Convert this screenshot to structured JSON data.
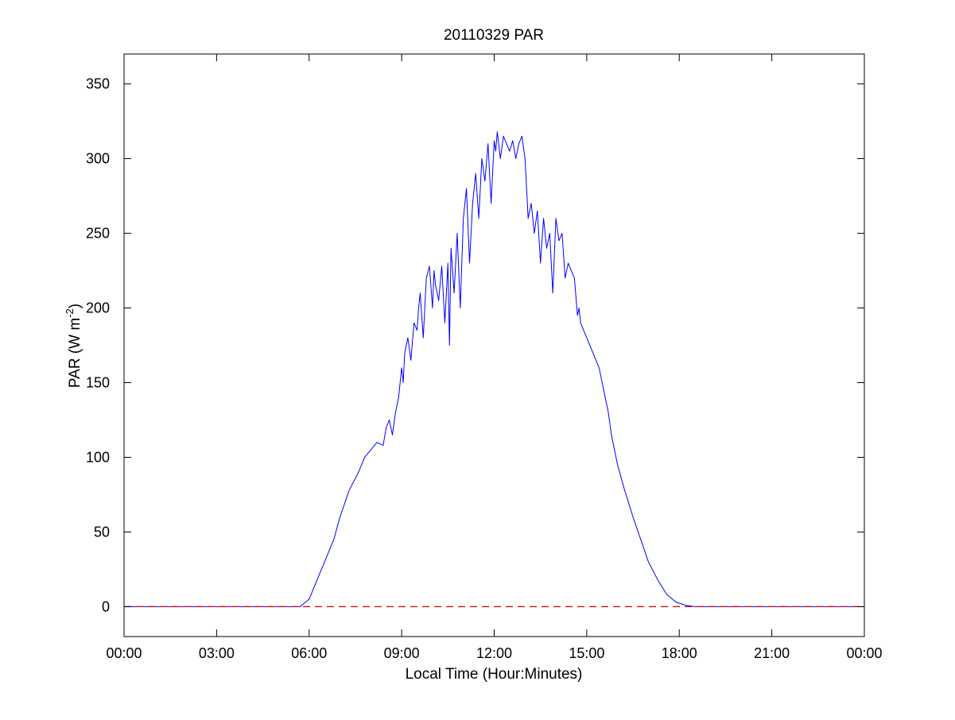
{
  "chart_data": {
    "type": "line",
    "title": "20110329 PAR",
    "xlabel": "Local Time (Hour:Minutes)",
    "ylabel": {
      "prefix": "PAR (W m",
      "superscript": "-2",
      "suffix": ")"
    },
    "xlim_hours": [
      0,
      24
    ],
    "ylim": [
      -20,
      370
    ],
    "x_ticks": [
      {
        "hour": 0,
        "label": "00:00"
      },
      {
        "hour": 3,
        "label": "03:00"
      },
      {
        "hour": 6,
        "label": "06:00"
      },
      {
        "hour": 9,
        "label": "09:00"
      },
      {
        "hour": 12,
        "label": "12:00"
      },
      {
        "hour": 15,
        "label": "15:00"
      },
      {
        "hour": 18,
        "label": "18:00"
      },
      {
        "hour": 21,
        "label": "21:00"
      },
      {
        "hour": 24,
        "label": "00:00"
      }
    ],
    "y_ticks": [
      {
        "value": 0,
        "label": "0"
      },
      {
        "value": 50,
        "label": "50"
      },
      {
        "value": 100,
        "label": "100"
      },
      {
        "value": 150,
        "label": "150"
      },
      {
        "value": 200,
        "label": "200"
      },
      {
        "value": 250,
        "label": "250"
      },
      {
        "value": 300,
        "label": "300"
      },
      {
        "value": 350,
        "label": "350"
      }
    ],
    "grid": false,
    "series": [
      {
        "style": "solid",
        "color": "#0000ff",
        "x_hours": [
          0,
          5.7,
          6.0,
          6.2,
          6.5,
          6.8,
          7.0,
          7.3,
          7.6,
          7.8,
          8.0,
          8.2,
          8.4,
          8.5,
          8.6,
          8.7,
          8.8,
          8.9,
          9.0,
          9.05,
          9.1,
          9.2,
          9.3,
          9.4,
          9.5,
          9.55,
          9.6,
          9.7,
          9.8,
          9.9,
          10.0,
          10.05,
          10.1,
          10.2,
          10.3,
          10.4,
          10.5,
          10.55,
          10.6,
          10.7,
          10.8,
          10.9,
          11.0,
          11.1,
          11.2,
          11.3,
          11.4,
          11.5,
          11.6,
          11.7,
          11.8,
          11.9,
          12.0,
          12.05,
          12.1,
          12.2,
          12.3,
          12.4,
          12.5,
          12.6,
          12.7,
          12.8,
          12.9,
          13.0,
          13.05,
          13.1,
          13.2,
          13.3,
          13.4,
          13.5,
          13.6,
          13.7,
          13.8,
          13.9,
          14.0,
          14.1,
          14.2,
          14.3,
          14.4,
          14.5,
          14.6,
          14.7,
          14.75,
          14.8,
          14.9,
          15.0,
          15.1,
          15.2,
          15.3,
          15.4,
          15.5,
          15.6,
          15.7,
          15.8,
          16.0,
          16.2,
          16.5,
          16.8,
          17.0,
          17.3,
          17.6,
          17.9,
          18.2,
          18.5,
          24
        ],
        "values": [
          0,
          0,
          5,
          15,
          30,
          45,
          60,
          78,
          90,
          100,
          105,
          110,
          108,
          120,
          125,
          115,
          130,
          140,
          160,
          150,
          170,
          180,
          165,
          190,
          185,
          200,
          210,
          180,
          220,
          228,
          200,
          225,
          215,
          205,
          228,
          190,
          230,
          175,
          240,
          210,
          250,
          200,
          260,
          280,
          230,
          270,
          290,
          260,
          300,
          285,
          310,
          270,
          312,
          305,
          318,
          300,
          315,
          310,
          305,
          312,
          300,
          310,
          315,
          300,
          280,
          260,
          270,
          250,
          265,
          230,
          260,
          240,
          250,
          210,
          260,
          245,
          250,
          220,
          230,
          225,
          220,
          195,
          200,
          190,
          185,
          180,
          175,
          170,
          165,
          160,
          150,
          140,
          130,
          115,
          95,
          80,
          60,
          42,
          30,
          18,
          8,
          3,
          1,
          0,
          0
        ]
      },
      {
        "style": "dashed",
        "color": "#cc0000",
        "x_hours": [
          0,
          24
        ],
        "values": [
          0,
          0
        ]
      }
    ]
  }
}
